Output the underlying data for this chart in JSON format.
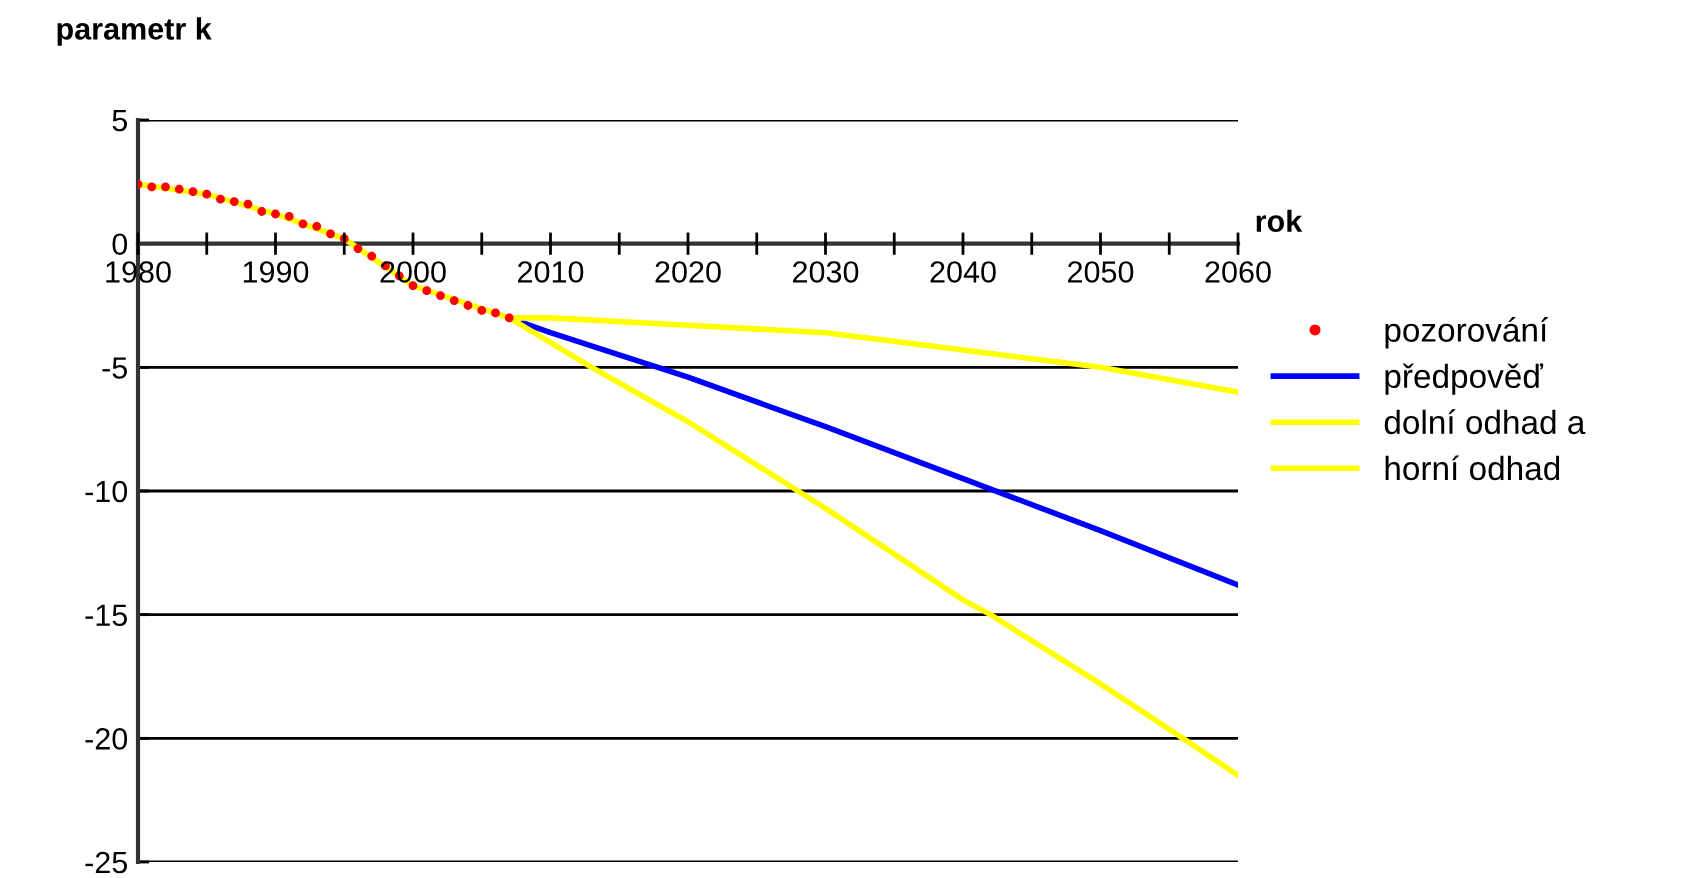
{
  "chart_data": {
    "type": "line",
    "ylabel": "parametr k",
    "xlabel": "rok",
    "xlim": [
      1980,
      2060
    ],
    "xticks": [
      1980,
      {
        "value": 1985,
        "label": null
      },
      1990,
      {
        "value": 1995,
        "label": null
      },
      2000,
      {
        "value": 2005,
        "label": null
      },
      2010,
      {
        "value": 2015,
        "label": null
      },
      2020,
      {
        "value": 2025,
        "label": null
      },
      2030,
      {
        "value": 2035,
        "label": null
      },
      2040,
      {
        "value": 2045,
        "label": null
      },
      2050,
      {
        "value": 2055,
        "label": null
      },
      2060
    ],
    "ylim": [
      -25,
      5
    ],
    "yticks": [
      -25,
      -20,
      -15,
      -10,
      -5,
      0,
      5
    ],
    "grid": "y",
    "legend": "right",
    "series": [
      {
        "name": "pozorování",
        "type": "scatter",
        "marker": "circle",
        "color": "#ff0000",
        "x": [
          1980,
          1981,
          1982,
          1983,
          1984,
          1985,
          1986,
          1987,
          1988,
          1989,
          1990,
          1991,
          1992,
          1993,
          1994,
          1995,
          1996,
          1997,
          1998,
          1999,
          2000,
          2001,
          2002,
          2003,
          2004,
          2005,
          2006,
          2007
        ],
        "values": [
          2.4,
          2.3,
          2.3,
          2.2,
          2.1,
          2.0,
          1.8,
          1.7,
          1.6,
          1.3,
          1.2,
          1.1,
          0.8,
          0.7,
          0.4,
          0.2,
          -0.2,
          -0.5,
          -0.9,
          -1.3,
          -1.7,
          -1.9,
          -2.1,
          -2.3,
          -2.5,
          -2.7,
          -2.8,
          -3.0
        ]
      },
      {
        "name": "předpověď",
        "color": "#0000ff",
        "x": [
          2008,
          2010,
          2020,
          2030,
          2040,
          2050,
          2060
        ],
        "values": [
          -3.2,
          -3.6,
          -5.4,
          -7.4,
          -9.5,
          -11.6,
          -13.8
        ]
      },
      {
        "name": "dolní odhad a",
        "color": "#ffff00",
        "x": [
          1980,
          1985,
          1990,
          1995,
          2000,
          2007,
          2010,
          2013,
          2020,
          2028,
          2030,
          2040,
          2042,
          2050,
          2056,
          2060
        ],
        "values": [
          2.4,
          2.0,
          1.2,
          0.2,
          -1.7,
          -3.0,
          -4.0,
          -5.0,
          -7.2,
          -10.0,
          -10.7,
          -14.4,
          -15.0,
          -17.8,
          -20.0,
          -21.5
        ]
      },
      {
        "name": "horní odhad",
        "color": "#ffff00",
        "x": [
          2007,
          2010,
          2020,
          2030,
          2040,
          2050,
          2060
        ],
        "values": [
          -3.0,
          -3.0,
          -3.3,
          -3.6,
          -4.3,
          -5.0,
          -6.0
        ]
      }
    ]
  }
}
